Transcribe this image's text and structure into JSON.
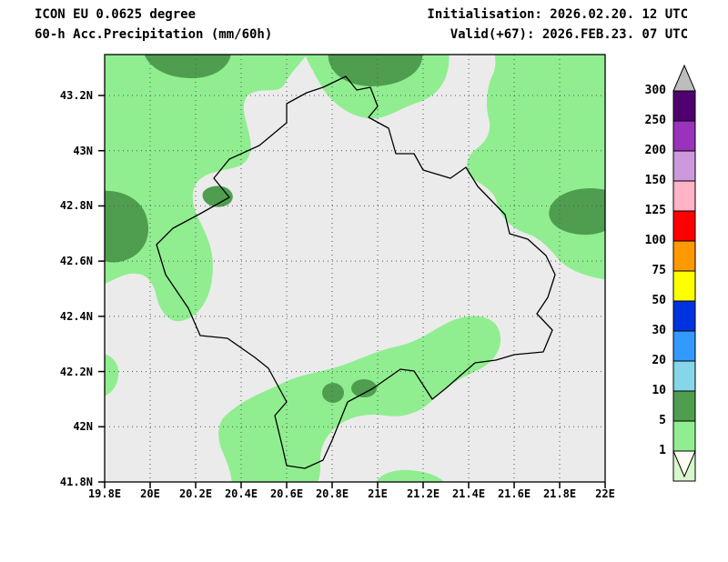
{
  "header": {
    "line1": "ICON EU 0.0625 degree",
    "line2": "60-h Acc.Precipitation (mm/60h)",
    "right1": "Initialisation: 2026.02.20. 12 UTC",
    "right2": "Valid(+67): 2026.FEB.23. 07 UTC"
  },
  "axes": {
    "lat_ticks": [
      {
        "label": "43.2N",
        "value": 43.2
      },
      {
        "label": "43N",
        "value": 43.0
      },
      {
        "label": "42.8N",
        "value": 42.8
      },
      {
        "label": "42.6N",
        "value": 42.6
      },
      {
        "label": "42.4N",
        "value": 42.4
      },
      {
        "label": "42.2N",
        "value": 42.2
      },
      {
        "label": "42N",
        "value": 42.0
      },
      {
        "label": "41.8N",
        "value": 41.8
      }
    ],
    "lon_ticks": [
      {
        "label": "19.8E",
        "value": 19.8
      },
      {
        "label": "20E",
        "value": 20.0
      },
      {
        "label": "20.2E",
        "value": 20.2
      },
      {
        "label": "20.4E",
        "value": 20.4
      },
      {
        "label": "20.6E",
        "value": 20.6
      },
      {
        "label": "20.8E",
        "value": 20.8
      },
      {
        "label": "21E",
        "value": 21.0
      },
      {
        "label": "21.2E",
        "value": 21.2
      },
      {
        "label": "21.4E",
        "value": 21.4
      },
      {
        "label": "21.6E",
        "value": 21.6
      },
      {
        "label": "21.8E",
        "value": 21.8
      },
      {
        "label": "22E",
        "value": 22.0
      }
    ],
    "lon_range": [
      19.8,
      22.0
    ],
    "lat_range": [
      41.8,
      43.35
    ]
  },
  "colorbar": {
    "tick_labels": [
      "300",
      "250",
      "200",
      "150",
      "125",
      "100",
      "75",
      "50",
      "30",
      "20",
      "10",
      "5",
      "1"
    ],
    "segment_colors_top_to_bottom": [
      "#50006e",
      "#9933bb",
      "#cc99dd",
      "#ffb3c6",
      "#ff0000",
      "#ff9900",
      "#ffff00",
      "#0033e0",
      "#3399ff",
      "#85d6e8",
      "#4f9e4f",
      "#90ee90",
      "#d8f7cc"
    ],
    "over_color": "#bdbdbd",
    "under_color": "#fcfcf4"
  },
  "map": {
    "background": "#ebebeb",
    "rain_light": "#90ee90",
    "rain_dark": "#4f9e4f",
    "border_color": "#000000",
    "grid_color": "#555555",
    "frame_color": "#000000"
  }
}
